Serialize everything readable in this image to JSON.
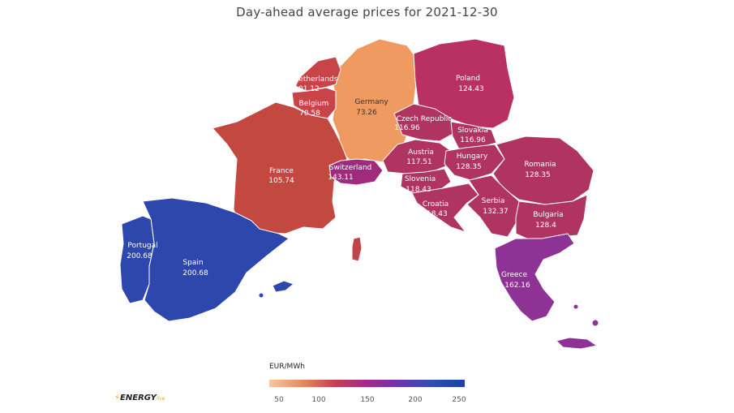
{
  "title": "Day-ahead average prices for 2021-12-30",
  "legend": {
    "unit": "EUR/MWh",
    "ticks": [
      "50",
      "100",
      "150",
      "200",
      "250"
    ],
    "gradient": [
      "#f4c9a4",
      "#e58b62",
      "#cc3d52",
      "#a5288a",
      "#6a34b0",
      "#2f4fb5",
      "#1c3fa8"
    ]
  },
  "logo": {
    "text": "ENERGY",
    "sub": "live"
  },
  "colors": {
    "germany": "#ee9a60",
    "netherlands": "#c94448",
    "belgium": "#c94448",
    "france": "#c24840",
    "poland": "#b83162",
    "mid": "#b03460",
    "switzerland": "#a02b7d",
    "greece": "#8e3296",
    "iberia": "#2e47ad",
    "islands": "#c1444a"
  },
  "countries": [
    {
      "name": "Netherlands",
      "price": "101.12"
    },
    {
      "name": "Belgium",
      "price": "70.58"
    },
    {
      "name": "Germany",
      "price": "73.26"
    },
    {
      "name": "Poland",
      "price": "124.43"
    },
    {
      "name": "Czech Republic",
      "price": "116.96"
    },
    {
      "name": "Slovakia",
      "price": "116.96"
    },
    {
      "name": "France",
      "price": "105.74"
    },
    {
      "name": "Switzerland",
      "price": "143.11"
    },
    {
      "name": "Austria",
      "price": "117.51"
    },
    {
      "name": "Hungary",
      "price": "128.35"
    },
    {
      "name": "Romania",
      "price": "128.35"
    },
    {
      "name": "Slovenia",
      "price": "118.43"
    },
    {
      "name": "Croatia",
      "price": "118.43"
    },
    {
      "name": "Serbia",
      "price": "132.37"
    },
    {
      "name": "Bulgaria",
      "price": "128.4"
    },
    {
      "name": "Greece",
      "price": "162.16"
    },
    {
      "name": "Portugal",
      "price": "200.68"
    },
    {
      "name": "Spain",
      "price": "200.68"
    }
  ]
}
